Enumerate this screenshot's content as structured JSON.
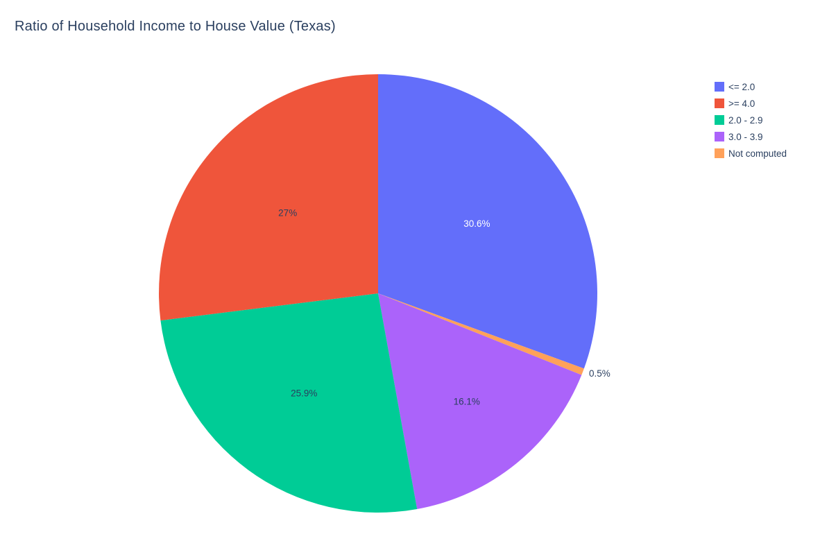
{
  "title": "Ratio of Household Income to House Value (Texas)",
  "chart_data": {
    "type": "pie",
    "title": "Ratio of Household Income to House Value (Texas)",
    "legend_position": "top-right",
    "background_color": "#ffffff",
    "title_color": "#2a3f5f",
    "categories": [
      "<= 2.0",
      ">= 4.0",
      "2.0 - 2.9",
      "3.0 - 3.9",
      "Not computed"
    ],
    "values": [
      30.6,
      27,
      25.9,
      16.1,
      0.5
    ],
    "slices": [
      {
        "label": "<= 2.0",
        "value": 30.6,
        "display": "30.6%",
        "color": "#636EFA",
        "text_color": "#ffffff",
        "text_position": "inside",
        "label_r": 0.55
      },
      {
        "label": "Not computed",
        "value": 0.5,
        "display": "0.5%",
        "color": "#FFA15A",
        "text_color": "#2a3f5f",
        "text_position": "outside",
        "label_r": 1.03
      },
      {
        "label": "3.0 - 3.9",
        "value": 16.1,
        "display": "16.1%",
        "color": "#AB63FA",
        "text_color": "#2a3f5f",
        "text_position": "inside",
        "label_r": 0.64
      },
      {
        "label": "2.0 - 2.9",
        "value": 25.9,
        "display": "25.9%",
        "color": "#00CC96",
        "text_color": "#2a3f5f",
        "text_position": "inside",
        "label_r": 0.57
      },
      {
        "label": ">= 4.0",
        "value": 27,
        "display": "27%",
        "color": "#EF553B",
        "text_color": "#2a3f5f",
        "text_position": "inside",
        "label_r": 0.55
      }
    ],
    "legend": [
      {
        "label": "<= 2.0",
        "color": "#636EFA"
      },
      {
        "label": ">= 4.0",
        "color": "#EF553B"
      },
      {
        "label": "2.0 - 2.9",
        "color": "#00CC96"
      },
      {
        "label": "3.0 - 3.9",
        "color": "#AB63FA"
      },
      {
        "label": "Not computed",
        "color": "#FFA15A"
      }
    ],
    "start_angle_deg": 0,
    "direction": "clockwise"
  }
}
